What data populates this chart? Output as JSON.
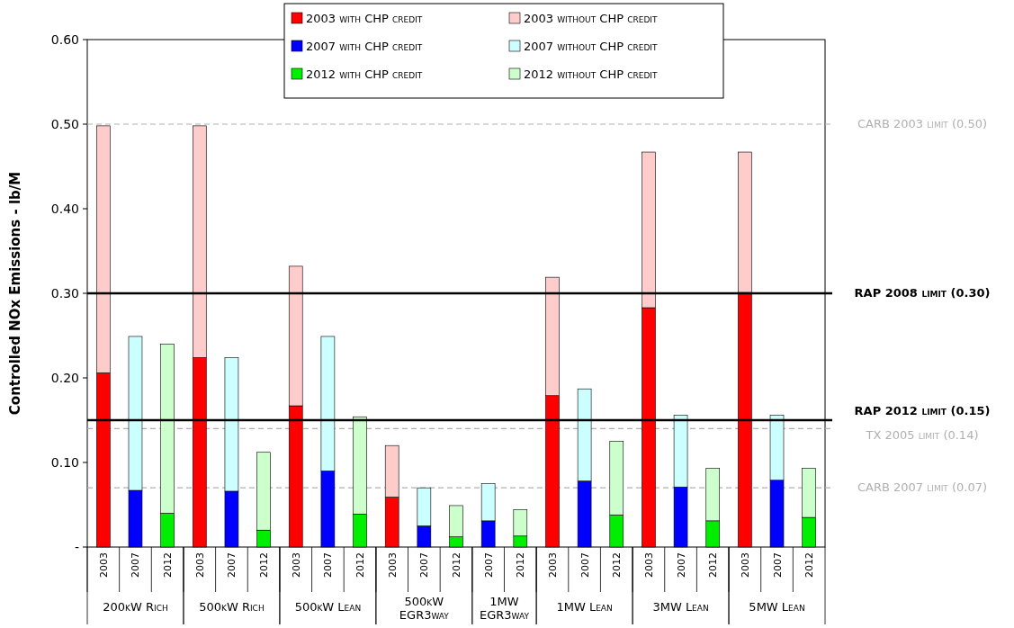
{
  "chart_data": {
    "type": "bar",
    "stacked": true,
    "ylabel": "Controlled NOx Emissions - lb/M",
    "categories": [
      "2003",
      "2007",
      "2012",
      "2003",
      "2007",
      "2012",
      "2003",
      "2007",
      "2012",
      "2003",
      "2007",
      "2012",
      "2007",
      "2012",
      "2003",
      "2007",
      "2012",
      "2003",
      "2007",
      "2012",
      "2003",
      "2007",
      "2012"
    ],
    "annotations": [
      "200kW Rich",
      "500kW Rich",
      "500kW Lean",
      "500kW EGR3way",
      "1MW EGR3way",
      "1MW Lean",
      "3MW Lean",
      "5MW Lean"
    ],
    "series": [
      {
        "name": "2003 with CHP credit",
        "color": "#ff0000",
        "values": [
          0.206,
          null,
          null,
          0.224,
          null,
          null,
          0.167,
          null,
          null,
          0.059,
          null,
          null,
          null,
          null,
          0.179,
          null,
          null,
          0.283,
          null,
          null,
          0.301,
          null,
          null
        ]
      },
      {
        "name": "2003 without CHP credit",
        "color": "#ffcccc",
        "values": [
          0.292,
          null,
          null,
          0.274,
          null,
          null,
          0.165,
          null,
          null,
          0.061,
          null,
          null,
          null,
          null,
          0.14,
          null,
          null,
          0.184,
          null,
          null,
          0.166,
          null,
          null
        ]
      },
      {
        "name": "2007 with CHP credit",
        "color": "#0000ff",
        "values": [
          null,
          0.067,
          null,
          null,
          0.066,
          null,
          null,
          0.09,
          null,
          null,
          0.025,
          null,
          0.031,
          null,
          null,
          0.078,
          null,
          null,
          0.071,
          null,
          null,
          0.079,
          null
        ]
      },
      {
        "name": "2007 without CHP credit",
        "color": "#ccffff",
        "values": [
          null,
          0.182,
          null,
          null,
          0.158,
          null,
          null,
          0.159,
          null,
          null,
          0.045,
          null,
          0.044,
          null,
          null,
          0.109,
          null,
          null,
          0.085,
          null,
          null,
          0.077,
          null
        ]
      },
      {
        "name": "2012 with CHP credit",
        "color": "#00ee00",
        "values": [
          null,
          null,
          0.04,
          null,
          null,
          0.02,
          null,
          null,
          0.039,
          null,
          null,
          0.012,
          null,
          0.013,
          null,
          null,
          0.038,
          null,
          null,
          0.031,
          null,
          null,
          0.035
        ]
      },
      {
        "name": "2012 without CHP credit",
        "color": "#ccffcc",
        "values": [
          null,
          null,
          0.2,
          null,
          null,
          0.092,
          null,
          null,
          0.115,
          null,
          null,
          0.037,
          null,
          0.031,
          null,
          null,
          0.087,
          null,
          null,
          0.062,
          null,
          null,
          0.058
        ]
      }
    ],
    "ylim": [
      0,
      0.6
    ],
    "yticks": [
      {
        "value": 0,
        "label": "-"
      },
      {
        "value": 0.1,
        "label": "0.10"
      },
      {
        "value": 0.2,
        "label": "0.20"
      },
      {
        "value": 0.3,
        "label": "0.30"
      },
      {
        "value": 0.4,
        "label": "0.40"
      },
      {
        "value": 0.5,
        "label": "0.50"
      },
      {
        "value": 0.6,
        "label": "0.60"
      }
    ],
    "ref_lines": [
      {
        "axis": "y",
        "value": 0.5,
        "label": "CARB 2003 limit (0.50)",
        "color": "#b0b0b0",
        "line_style": "dashed"
      },
      {
        "axis": "y",
        "value": 0.3,
        "label": "RAP 2008 limit (0.30)",
        "color": "#000000",
        "line_style": "solid"
      },
      {
        "axis": "y",
        "value": 0.15,
        "label": "RAP 2012 limit (0.15)",
        "color": "#000000",
        "line_style": "solid"
      },
      {
        "axis": "y",
        "value": 0.14,
        "label": "TX 2005 limit (0.14)",
        "color": "#b0b0b0",
        "line_style": "dashed"
      },
      {
        "axis": "y",
        "value": 0.07,
        "label": "CARB 2007 limit (0.07)",
        "color": "#b0b0b0",
        "line_style": "dashed"
      }
    ],
    "legend": "top",
    "grid": false
  }
}
